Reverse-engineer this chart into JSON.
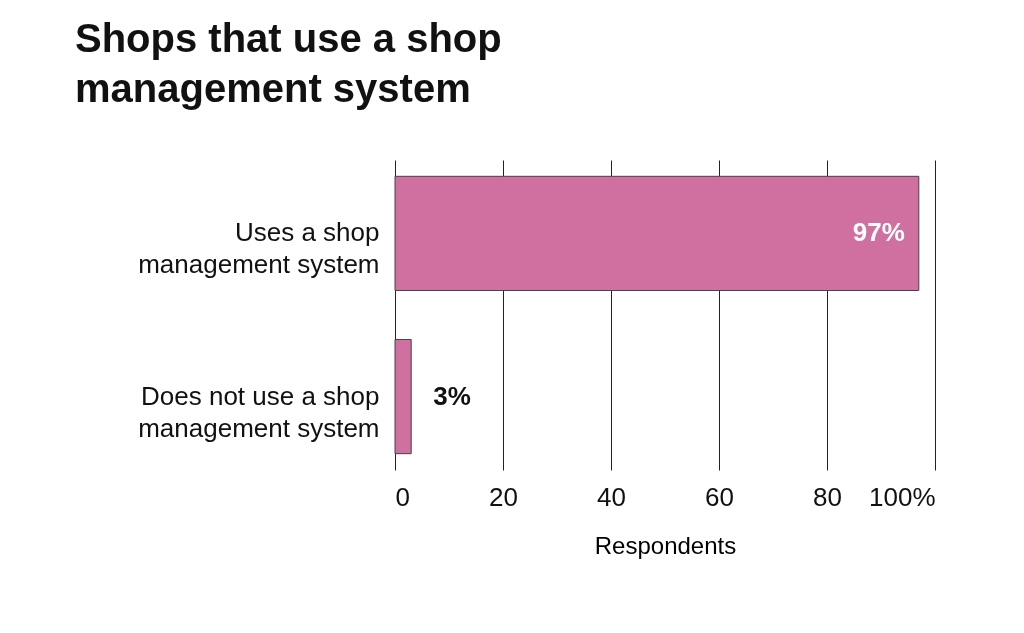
{
  "chart_data": {
    "type": "bar",
    "orientation": "horizontal",
    "title": "Shops that use a shop management system",
    "xlabel": "Respondents",
    "categories": [
      "Uses a shop management system",
      "Does not use a shop management system"
    ],
    "values": [
      97,
      3
    ],
    "color": "#d070a0",
    "value_labels": [
      "97%",
      "3%"
    ],
    "xlim": [
      0,
      100
    ],
    "xticks": [
      0,
      20,
      40,
      60,
      80,
      {
        "value": 100,
        "label": "100%"
      }
    ],
    "grid": "x"
  }
}
